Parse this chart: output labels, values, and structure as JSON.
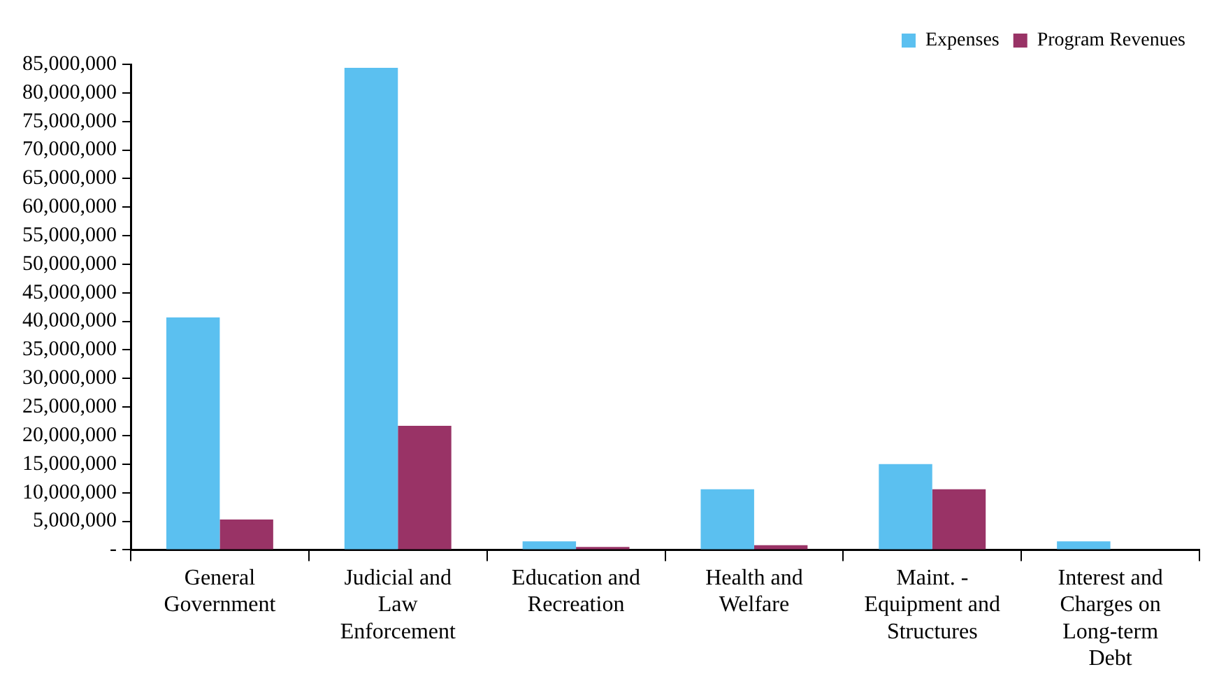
{
  "chart_data": {
    "type": "bar",
    "categories": [
      "General Government",
      "Judicial and Law Enforcement",
      "Education and Recreation",
      "Health and Welfare",
      "Maint. - Equipment and Structures",
      "Interest and Charges on Long-term Debt"
    ],
    "series": [
      {
        "name": "Expenses",
        "color": "#5bc0f0",
        "values": [
          40700000,
          84400000,
          1500000,
          10600000,
          15000000,
          1500000
        ]
      },
      {
        "name": "Program Revenues",
        "color": "#993366",
        "values": [
          5300000,
          21700000,
          500000,
          800000,
          10600000,
          0
        ]
      }
    ],
    "ylim": [
      0,
      85000000
    ],
    "yticks": [
      {
        "value": 0,
        "label": "-"
      },
      {
        "value": 5000000,
        "label": "5,000,000"
      },
      {
        "value": 10000000,
        "label": "10,000,000"
      },
      {
        "value": 15000000,
        "label": "15,000,000"
      },
      {
        "value": 20000000,
        "label": "20,000,000"
      },
      {
        "value": 25000000,
        "label": "25,000,000"
      },
      {
        "value": 30000000,
        "label": "30,000,000"
      },
      {
        "value": 35000000,
        "label": "35,000,000"
      },
      {
        "value": 40000000,
        "label": "40,000,000"
      },
      {
        "value": 45000000,
        "label": "45,000,000"
      },
      {
        "value": 50000000,
        "label": "50,000,000"
      },
      {
        "value": 55000000,
        "label": "55,000,000"
      },
      {
        "value": 60000000,
        "label": "60,000,000"
      },
      {
        "value": 65000000,
        "label": "65,000,000"
      },
      {
        "value": 70000000,
        "label": "70,000,000"
      },
      {
        "value": 75000000,
        "label": "75,000,000"
      },
      {
        "value": 80000000,
        "label": "80,000,000"
      },
      {
        "value": 85000000,
        "label": "85,000,000"
      }
    ],
    "grid": false,
    "legend": "top right"
  }
}
